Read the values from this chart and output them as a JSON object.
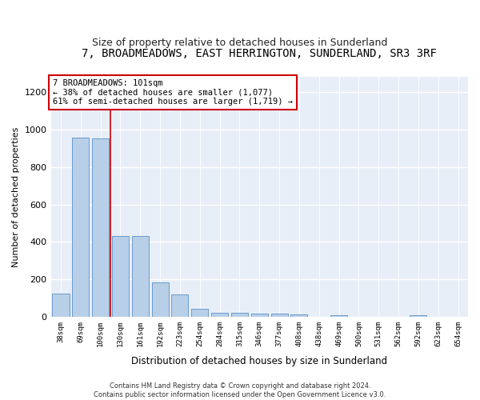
{
  "title": "7, BROADMEADOWS, EAST HERRINGTON, SUNDERLAND, SR3 3RF",
  "subtitle": "Size of property relative to detached houses in Sunderland",
  "xlabel": "Distribution of detached houses by size in Sunderland",
  "ylabel": "Number of detached properties",
  "categories": [
    "38sqm",
    "69sqm",
    "100sqm",
    "130sqm",
    "161sqm",
    "192sqm",
    "223sqm",
    "254sqm",
    "284sqm",
    "315sqm",
    "346sqm",
    "377sqm",
    "408sqm",
    "438sqm",
    "469sqm",
    "500sqm",
    "531sqm",
    "562sqm",
    "592sqm",
    "623sqm",
    "654sqm"
  ],
  "values": [
    125,
    955,
    950,
    430,
    430,
    185,
    120,
    45,
    22,
    22,
    20,
    20,
    15,
    0,
    10,
    0,
    0,
    0,
    10,
    0,
    0
  ],
  "bar_color": "#b8cfe8",
  "bar_edge_color": "#5a90c8",
  "vline_x_index": 2,
  "vline_color": "#cc0000",
  "annotation_text": "7 BROADMEADOWS: 101sqm\n← 38% of detached houses are smaller (1,077)\n61% of semi-detached houses are larger (1,719) →",
  "annotation_box_color": "#ffffff",
  "annotation_box_edge": "#cc0000",
  "footer": "Contains HM Land Registry data © Crown copyright and database right 2024.\nContains public sector information licensed under the Open Government Licence v3.0.",
  "ylim": [
    0,
    1280
  ],
  "yticks": [
    0,
    200,
    400,
    600,
    800,
    1000,
    1200
  ],
  "axes_bg_color": "#e8eef8",
  "fig_bg_color": "#ffffff",
  "title_fontsize": 10,
  "subtitle_fontsize": 9
}
